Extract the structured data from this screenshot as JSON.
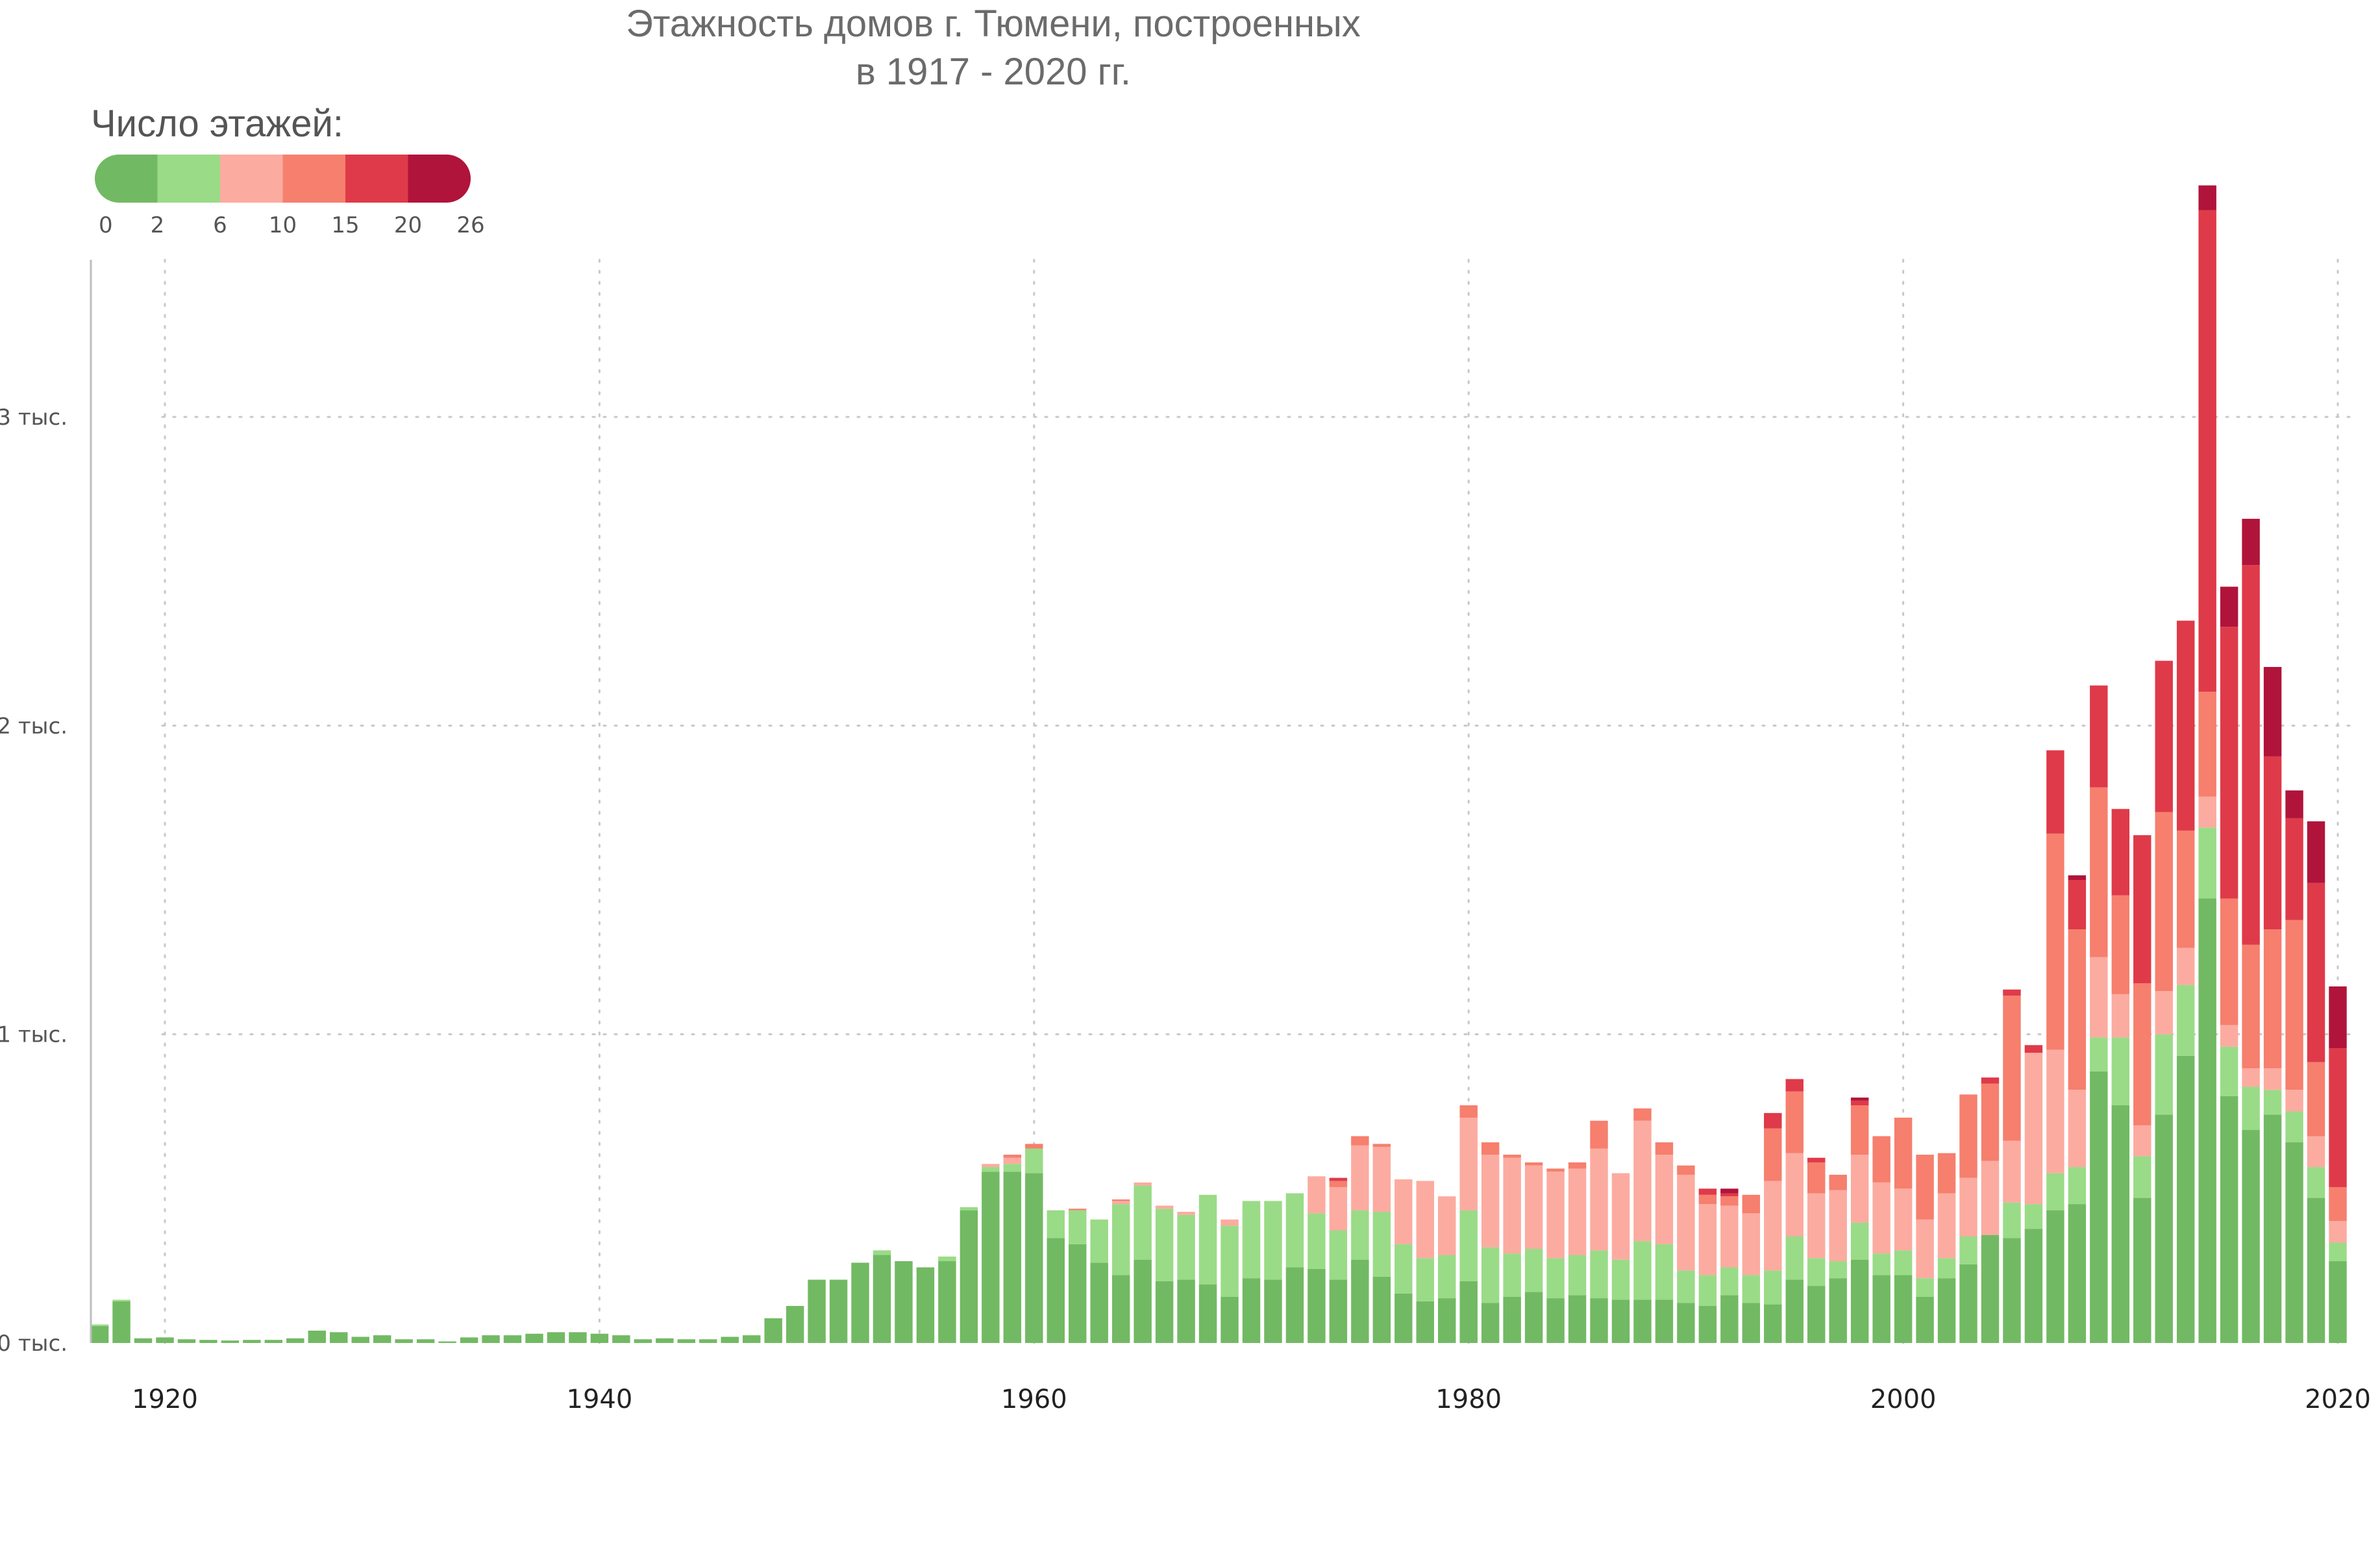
{
  "chart_data": {
    "type": "bar",
    "stacked": true,
    "title": "Этажность домов г. Тюмени, построенных",
    "subtitle": "в 1917 - 2020 гг.",
    "legend": {
      "title": "Число этажей:",
      "ticks": [
        "0",
        "2",
        "6",
        "10",
        "15",
        "20",
        "26"
      ],
      "colors": [
        "#72b963",
        "#9adb87",
        "#fcaba0",
        "#f67f6e",
        "#df3a49",
        "#b0143a"
      ],
      "placement": "top-left"
    },
    "xlim": [
      1917,
      2020
    ],
    "ylim": [
      0,
      3500
    ],
    "y_ticks": [
      {
        "value": 0,
        "label": "0 тыс."
      },
      {
        "value": 1000,
        "label": "1 тыс."
      },
      {
        "value": 2000,
        "label": "2 тыс."
      },
      {
        "value": 3000,
        "label": "3 тыс."
      }
    ],
    "x_ticks": [
      1920,
      1940,
      1960,
      1980,
      2000,
      2020
    ],
    "grid": true,
    "x": [
      1917,
      1918,
      1919,
      1920,
      1921,
      1922,
      1923,
      1924,
      1925,
      1926,
      1927,
      1928,
      1929,
      1930,
      1931,
      1932,
      1933,
      1934,
      1935,
      1936,
      1937,
      1938,
      1939,
      1940,
      1941,
      1942,
      1943,
      1944,
      1945,
      1946,
      1947,
      1948,
      1949,
      1950,
      1951,
      1952,
      1953,
      1954,
      1955,
      1956,
      1957,
      1958,
      1959,
      1960,
      1961,
      1962,
      1963,
      1964,
      1965,
      1966,
      1967,
      1968,
      1969,
      1970,
      1971,
      1972,
      1973,
      1974,
      1975,
      1976,
      1977,
      1978,
      1979,
      1980,
      1981,
      1982,
      1983,
      1984,
      1985,
      1986,
      1987,
      1988,
      1989,
      1990,
      1991,
      1992,
      1993,
      1994,
      1995,
      1996,
      1997,
      1998,
      1999,
      2000,
      2001,
      2002,
      2003,
      2004,
      2005,
      2006,
      2007,
      2008,
      2009,
      2010,
      2011,
      2012,
      2013,
      2014,
      2015,
      2016,
      2017,
      2018,
      2019,
      2020
    ],
    "series": [
      {
        "name": "0-2",
        "color": "#72b963",
        "values": [
          55,
          135,
          15,
          18,
          12,
          10,
          8,
          10,
          10,
          15,
          40,
          35,
          20,
          25,
          12,
          12,
          5,
          18,
          25,
          25,
          30,
          35,
          35,
          30,
          25,
          12,
          15,
          12,
          12,
          20,
          25,
          80,
          120,
          205,
          205,
          260,
          285,
          265,
          245,
          265,
          430,
          555,
          555,
          550,
          340,
          320,
          260,
          220,
          270,
          200,
          205,
          190,
          150,
          210,
          205,
          245,
          240,
          205,
          270,
          215,
          160,
          135,
          145,
          200,
          130,
          150,
          165,
          145,
          155,
          145,
          140,
          140,
          140,
          130,
          120,
          155,
          130,
          125,
          205,
          185,
          210,
          270,
          220,
          220,
          150,
          210,
          255,
          350,
          340,
          370,
          430,
          450,
          880,
          770,
          470,
          740,
          930,
          1440,
          800,
          690,
          740,
          650,
          470,
          265
        ]
      },
      {
        "name": "2-6",
        "color": "#9adb87",
        "values": [
          5,
          5,
          0,
          0,
          0,
          0,
          0,
          0,
          0,
          0,
          0,
          0,
          0,
          0,
          0,
          0,
          0,
          0,
          0,
          0,
          0,
          0,
          0,
          0,
          0,
          0,
          0,
          0,
          0,
          0,
          0,
          0,
          0,
          0,
          0,
          0,
          15,
          0,
          0,
          15,
          10,
          15,
          25,
          80,
          90,
          110,
          140,
          230,
          240,
          235,
          210,
          290,
          230,
          250,
          255,
          240,
          180,
          160,
          160,
          210,
          160,
          140,
          140,
          230,
          180,
          140,
          140,
          130,
          130,
          155,
          130,
          190,
          180,
          105,
          100,
          90,
          90,
          110,
          140,
          90,
          55,
          120,
          70,
          80,
          60,
          65,
          90,
          0,
          115,
          80,
          120,
          120,
          110,
          220,
          135,
          260,
          230,
          230,
          160,
          140,
          80,
          100,
          100,
          60
        ]
      },
      {
        "name": "6-10",
        "color": "#fcaba0",
        "values": [
          0,
          0,
          0,
          0,
          0,
          0,
          0,
          0,
          0,
          0,
          0,
          0,
          0,
          0,
          0,
          0,
          0,
          0,
          0,
          0,
          0,
          0,
          0,
          0,
          0,
          0,
          0,
          0,
          0,
          0,
          0,
          0,
          0,
          0,
          0,
          0,
          0,
          0,
          0,
          0,
          0,
          10,
          20,
          0,
          0,
          0,
          0,
          10,
          10,
          10,
          10,
          0,
          20,
          0,
          0,
          0,
          120,
          140,
          210,
          210,
          210,
          250,
          190,
          300,
          300,
          310,
          270,
          280,
          280,
          330,
          280,
          390,
          290,
          310,
          230,
          200,
          200,
          290,
          270,
          210,
          230,
          220,
          230,
          200,
          190,
          210,
          190,
          240,
          200,
          490,
          400,
          250,
          260,
          140,
          100,
          140,
          120,
          100,
          70,
          60,
          70,
          70,
          100,
          70
        ]
      },
      {
        "name": "10-15",
        "color": "#f67f6e",
        "values": [
          0,
          0,
          0,
          0,
          0,
          0,
          0,
          0,
          0,
          0,
          0,
          0,
          0,
          0,
          0,
          0,
          0,
          0,
          0,
          0,
          0,
          0,
          0,
          0,
          0,
          0,
          0,
          0,
          0,
          0,
          0,
          0,
          0,
          0,
          0,
          0,
          0,
          0,
          0,
          0,
          0,
          0,
          10,
          15,
          0,
          5,
          0,
          5,
          0,
          0,
          0,
          0,
          0,
          0,
          0,
          0,
          0,
          20,
          30,
          10,
          0,
          0,
          0,
          40,
          40,
          10,
          10,
          10,
          20,
          90,
          0,
          40,
          40,
          30,
          30,
          30,
          60,
          170,
          200,
          100,
          50,
          160,
          150,
          230,
          210,
          130,
          270,
          250,
          470,
          0,
          700,
          520,
          550,
          320,
          460,
          580,
          380,
          340,
          410,
          400,
          450,
          550,
          240,
          110
        ]
      },
      {
        "name": "15-20",
        "color": "#df3a49",
        "values": [
          0,
          0,
          0,
          0,
          0,
          0,
          0,
          0,
          0,
          0,
          0,
          0,
          0,
          0,
          0,
          0,
          0,
          0,
          0,
          0,
          0,
          0,
          0,
          0,
          0,
          0,
          0,
          0,
          0,
          0,
          0,
          0,
          0,
          0,
          0,
          0,
          0,
          0,
          0,
          0,
          0,
          0,
          0,
          0,
          0,
          0,
          0,
          0,
          0,
          0,
          0,
          0,
          0,
          0,
          0,
          0,
          0,
          10,
          0,
          0,
          0,
          0,
          0,
          0,
          0,
          0,
          0,
          0,
          0,
          0,
          0,
          0,
          0,
          0,
          20,
          10,
          0,
          50,
          40,
          15,
          0,
          15,
          0,
          0,
          0,
          0,
          0,
          20,
          20,
          25,
          270,
          160,
          330,
          280,
          480,
          490,
          680,
          1560,
          880,
          1230,
          560,
          330,
          580,
          450
        ]
      },
      {
        "name": "20-26",
        "color": "#b0143a",
        "values": [
          0,
          0,
          0,
          0,
          0,
          0,
          0,
          0,
          0,
          0,
          0,
          0,
          0,
          0,
          0,
          0,
          0,
          0,
          0,
          0,
          0,
          0,
          0,
          0,
          0,
          0,
          0,
          0,
          0,
          0,
          0,
          0,
          0,
          0,
          0,
          0,
          0,
          0,
          0,
          0,
          0,
          0,
          0,
          0,
          0,
          0,
          0,
          0,
          0,
          0,
          0,
          0,
          0,
          0,
          0,
          0,
          0,
          0,
          0,
          0,
          0,
          0,
          0,
          0,
          0,
          0,
          0,
          0,
          0,
          0,
          0,
          0,
          0,
          0,
          0,
          15,
          0,
          0,
          0,
          0,
          0,
          10,
          0,
          0,
          0,
          0,
          0,
          0,
          0,
          0,
          0,
          15,
          0,
          0,
          0,
          0,
          0,
          80,
          130,
          150,
          290,
          90,
          200,
          200
        ]
      }
    ]
  }
}
